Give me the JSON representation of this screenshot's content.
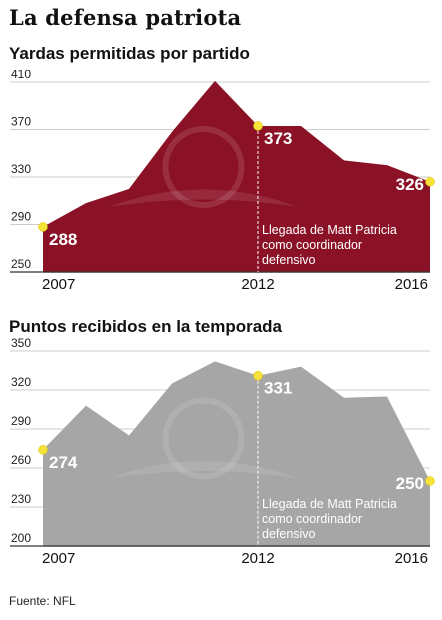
{
  "title": "La defensa patriota",
  "source": "Fuente: NFL",
  "chart_data": [
    {
      "type": "area",
      "title": "Yardas permitidas por partido",
      "x": [
        2007,
        2008,
        2009,
        2010,
        2011,
        2012,
        2013,
        2014,
        2015,
        2016
      ],
      "values": [
        288,
        308,
        320,
        368,
        411,
        373,
        373,
        344,
        340,
        326
      ],
      "ylim": [
        250,
        410
      ],
      "yticks": [
        410,
        370,
        330,
        290,
        250
      ],
      "xticks": [
        "2007",
        "2012",
        "2016"
      ],
      "color": "#8b1226",
      "data_labels": [
        {
          "index": 0,
          "text": "288"
        },
        {
          "index": 5,
          "text": "373"
        },
        {
          "index": 9,
          "text": "326"
        }
      ],
      "marker_index": 5,
      "annotation": [
        "Llegada de Matt Patricia",
        "como coordinador",
        "defensivo"
      ]
    },
    {
      "type": "area",
      "title": "Puntos recibidos en la temporada",
      "x": [
        2007,
        2008,
        2009,
        2010,
        2011,
        2012,
        2013,
        2014,
        2015,
        2016
      ],
      "values": [
        274,
        308,
        285,
        325,
        342,
        331,
        338,
        314,
        315,
        250
      ],
      "ylim": [
        200,
        350
      ],
      "yticks": [
        350,
        320,
        290,
        260,
        230,
        200
      ],
      "xticks": [
        "2007",
        "2012",
        "2016"
      ],
      "color": "#a6a6a6",
      "data_labels": [
        {
          "index": 0,
          "text": "274"
        },
        {
          "index": 5,
          "text": "331"
        },
        {
          "index": 9,
          "text": "250"
        }
      ],
      "marker_index": 5,
      "annotation": [
        "Llegada de Matt Patricia",
        "como coordinador",
        "defensivo"
      ]
    }
  ]
}
